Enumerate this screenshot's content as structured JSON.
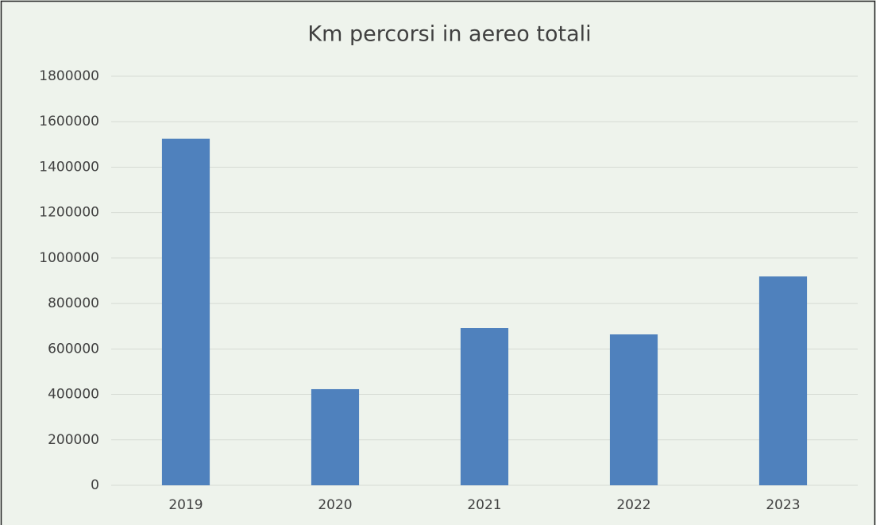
{
  "chart_data": {
    "type": "bar",
    "title": "Km percorsi in aereo totali",
    "categories": [
      "2019",
      "2020",
      "2021",
      "2022",
      "2023"
    ],
    "values": [
      1525000,
      423000,
      692000,
      664000,
      919000
    ],
    "color": "#4f81bd",
    "ylim": [
      0,
      1800000
    ],
    "yticks": [
      0,
      200000,
      400000,
      600000,
      800000,
      1000000,
      1200000,
      1400000,
      1600000,
      1800000
    ],
    "grid": true
  }
}
